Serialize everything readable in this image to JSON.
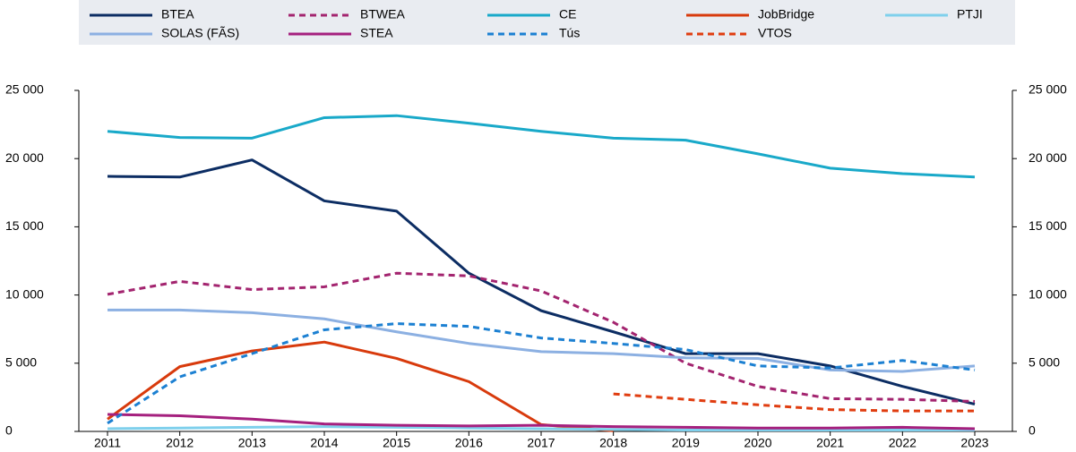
{
  "chart_data": {
    "type": "line",
    "x": [
      2011,
      2012,
      2013,
      2014,
      2015,
      2016,
      2017,
      2018,
      2019,
      2020,
      2021,
      2022,
      2023
    ],
    "xlim": [
      2011,
      2023
    ],
    "ylim": [
      0,
      25000
    ],
    "yticks": [
      0,
      {
        "value": 5000,
        "label": "5 000"
      },
      {
        "value": 10000,
        "label": "10 000"
      },
      {
        "value": 15000,
        "label": "15 000"
      },
      {
        "value": 20000,
        "label": "20 000"
      },
      {
        "value": 25000,
        "label": "25 000"
      }
    ],
    "y2lim": [
      0,
      25000
    ],
    "y2ticks": [
      0,
      {
        "value": 5000,
        "label": "5 000"
      },
      {
        "value": 10000,
        "label": "10 000"
      },
      {
        "value": 15000,
        "label": "15 000"
      },
      {
        "value": 20000,
        "label": "20 000"
      },
      {
        "value": 25000,
        "label": "25 000"
      }
    ],
    "legend": "top",
    "series": [
      {
        "name": "BTEA",
        "color": "#0c2d63",
        "dashed": false,
        "values": [
          18700,
          18650,
          19900,
          16900,
          16150,
          11600,
          8850,
          7300,
          5700,
          5700,
          4800,
          3300,
          2000
        ]
      },
      {
        "name": "BTWEA",
        "color": "#a3246f",
        "dashed": true,
        "values": [
          10050,
          11000,
          10400,
          10600,
          11600,
          11400,
          10300,
          8000,
          5000,
          3300,
          2400,
          2350,
          2200
        ]
      },
      {
        "name": "CE",
        "color": "#19a9c9",
        "dashed": false,
        "values": [
          22000,
          21550,
          21500,
          23000,
          23150,
          22600,
          22000,
          21500,
          21350,
          20350,
          19300,
          18900,
          18650
        ]
      },
      {
        "name": "JobBridge",
        "color": "#d83a0c",
        "dashed": false,
        "values": [
          900,
          4750,
          5900,
          6550,
          5350,
          3650,
          500,
          50,
          null,
          null,
          null,
          null,
          null
        ]
      },
      {
        "name": "PTJI",
        "color": "#7fd0ec",
        "dashed": false,
        "values": [
          200,
          250,
          300,
          350,
          300,
          250,
          200,
          150,
          100,
          100,
          100,
          100,
          100
        ]
      },
      {
        "name": "SOLAS (FÃS)",
        "color": "#8cb0e2",
        "dashed": false,
        "values": [
          8900,
          8900,
          8700,
          8250,
          7300,
          6450,
          5850,
          5700,
          5400,
          5350,
          4500,
          4400,
          4800
        ]
      },
      {
        "name": "STEA",
        "color": "#a5207e",
        "dashed": false,
        "values": [
          1250,
          1150,
          900,
          550,
          450,
          400,
          450,
          350,
          300,
          250,
          250,
          300,
          200
        ]
      },
      {
        "name": "Tús",
        "color": "#1c80d2",
        "dashed": true,
        "values": [
          600,
          4000,
          5700,
          7450,
          7900,
          7700,
          6850,
          6450,
          6000,
          4800,
          4650,
          5200,
          4500
        ]
      },
      {
        "name": "VTOS",
        "color": "#e03d10",
        "dashed": true,
        "values": [
          null,
          null,
          null,
          null,
          null,
          null,
          null,
          2750,
          2350,
          1950,
          1600,
          1500,
          1500
        ]
      }
    ]
  }
}
